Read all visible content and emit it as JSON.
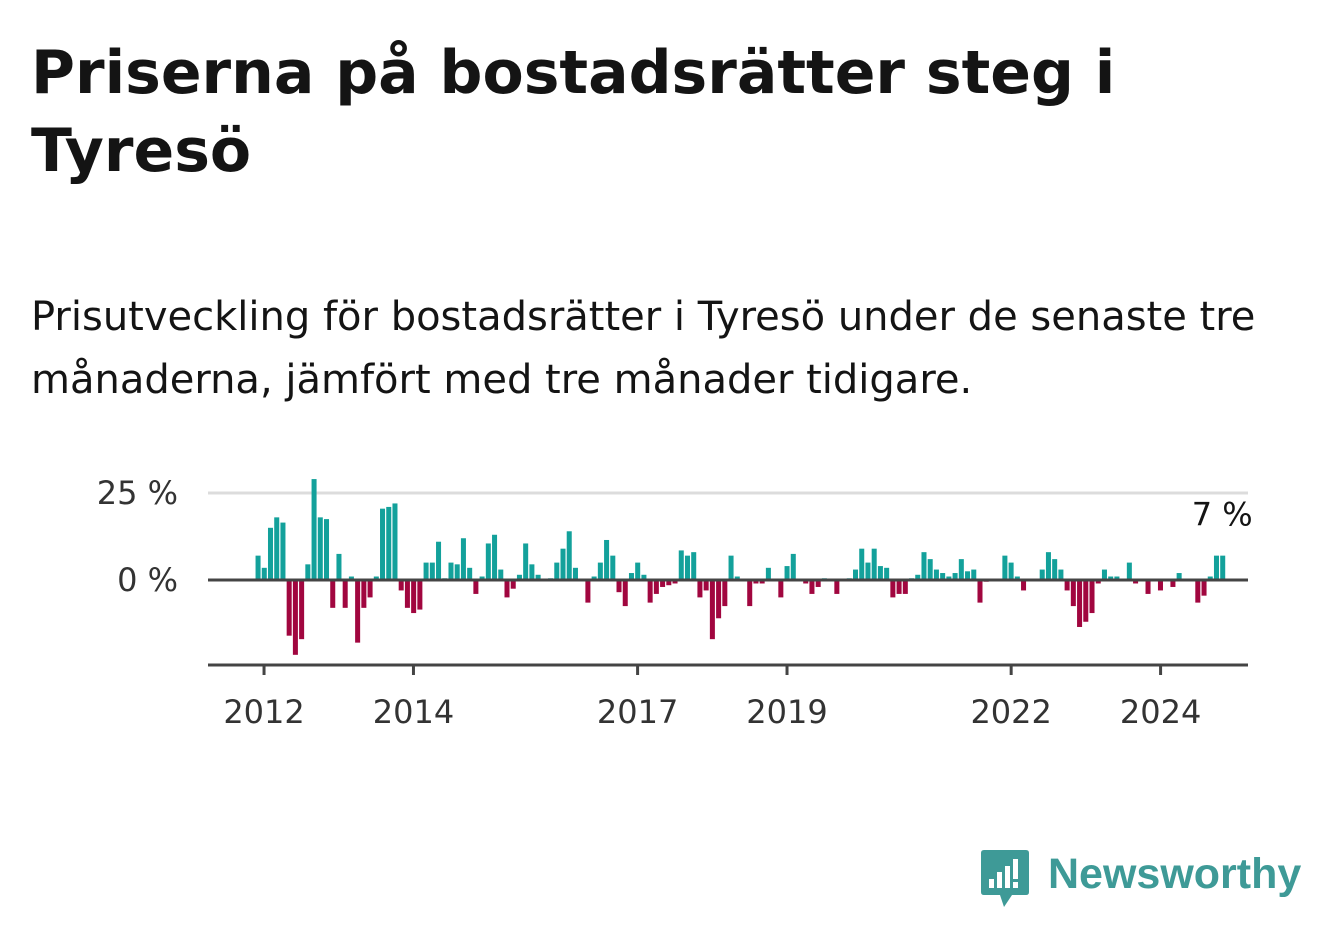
{
  "title": "Priserna på bostadsrätter steg i Tyresö",
  "subtitle": "Prisutveckling för bostadsrätter i Tyresö under de senaste tre månaderna, jämfört med tre månader tidigare.",
  "brand": {
    "name": "Newsworthy",
    "icon": "newsworthy-logo-icon",
    "color": "#3e9a97"
  },
  "colors": {
    "positive": "#13a19b",
    "negative": "#a1063f",
    "grid": "#dcdcdc",
    "axis": "#444444"
  },
  "chart_data": {
    "type": "bar",
    "title": "Priserna på bostadsrätter steg i Tyresö",
    "xlabel": "",
    "ylabel": "",
    "ylim": [
      -25,
      30
    ],
    "yticks": [
      {
        "value": 25,
        "label": "25 %"
      },
      {
        "value": 0,
        "label": "0 %"
      }
    ],
    "x_start": 2011.92,
    "x_step": 0.0833,
    "x_range": [
      2011.25,
      2025.17
    ],
    "xticks": [
      {
        "value": 2012,
        "label": "2012"
      },
      {
        "value": 2014,
        "label": "2014"
      },
      {
        "value": 2017,
        "label": "2017"
      },
      {
        "value": 2019,
        "label": "2019"
      },
      {
        "value": 2022,
        "label": "2022"
      },
      {
        "value": 2024,
        "label": "2024"
      }
    ],
    "last_value_label": "7 %",
    "values": [
      7,
      3.5,
      15,
      18,
      16.5,
      -16,
      -21.5,
      -17,
      4.5,
      29,
      18,
      17.5,
      -8,
      7.5,
      -8,
      1,
      -18,
      -8,
      -5,
      1,
      20.5,
      21,
      22,
      -3,
      -8,
      -9.5,
      -8.5,
      5,
      5,
      11,
      0.5,
      5,
      4.5,
      12,
      3.5,
      -4,
      1,
      10.5,
      13,
      3,
      -5,
      -2.5,
      1.5,
      10.5,
      4.5,
      1.5,
      0,
      0.5,
      5,
      9,
      14,
      3.5,
      0,
      -6.5,
      1,
      5,
      11.5,
      7,
      -3.5,
      -7.5,
      2,
      5,
      1.5,
      -6.5,
      -4,
      -2,
      -1.5,
      -1,
      8.5,
      7,
      8,
      -5,
      -3,
      -17,
      -11,
      -7.5,
      7,
      1,
      0,
      -7.5,
      -1,
      -1,
      3.5,
      0,
      -5,
      4,
      7.5,
      0,
      -1,
      -4,
      -2,
      0.5,
      0,
      -4,
      0,
      0.5,
      3,
      9,
      5,
      9,
      4,
      3.5,
      -5,
      -4,
      -4,
      0.5,
      1.5,
      8,
      6,
      3,
      2,
      1,
      2,
      6,
      2.5,
      3,
      -6.5,
      -0.5,
      0,
      0,
      7,
      5,
      1,
      -3,
      0,
      0,
      3,
      8,
      6,
      3,
      -3,
      -7.5,
      -13.5,
      -12,
      -9.5,
      -1,
      3,
      1,
      1,
      0,
      5,
      -1,
      0,
      -4,
      0,
      -3,
      0,
      -2,
      2,
      0,
      0,
      -6.5,
      -4.5,
      1,
      7,
      7
    ]
  }
}
